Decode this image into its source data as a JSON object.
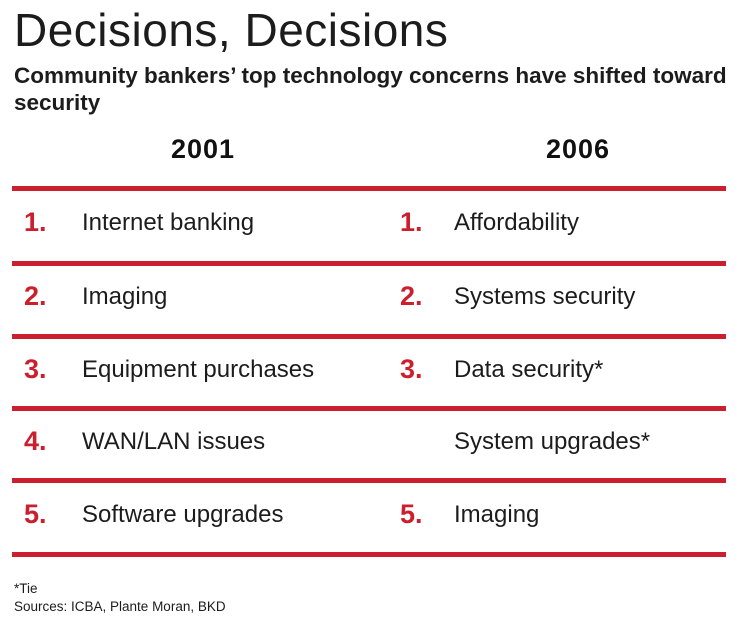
{
  "title": "Decisions, Decisions",
  "subtitle": "Community bankers’ top technology concerns have shifted toward security",
  "columns": [
    "2001",
    "2006"
  ],
  "rows": [
    {
      "left_rank": "1.",
      "left_item": "Internet banking",
      "right_rank": "1.",
      "right_item": "Affordability"
    },
    {
      "left_rank": "2.",
      "left_item": "Imaging",
      "right_rank": "2.",
      "right_item": "Systems security"
    },
    {
      "left_rank": "3.",
      "left_item": "Equipment purchases",
      "right_rank": "3.",
      "right_item": "Data security*"
    },
    {
      "left_rank": "4.",
      "left_item": "WAN/LAN issues",
      "right_rank": "",
      "right_item": "System upgrades*"
    },
    {
      "left_rank": "5.",
      "left_item": "Software upgrades",
      "right_rank": "5.",
      "right_item": "Imaging"
    }
  ],
  "footnote": "*Tie",
  "sources": "Sources: ICBA, Plante Moran, BKD",
  "colors": {
    "accent_red": "#cc1f2d",
    "text": "#1c1c1c",
    "background": "#ffffff"
  }
}
